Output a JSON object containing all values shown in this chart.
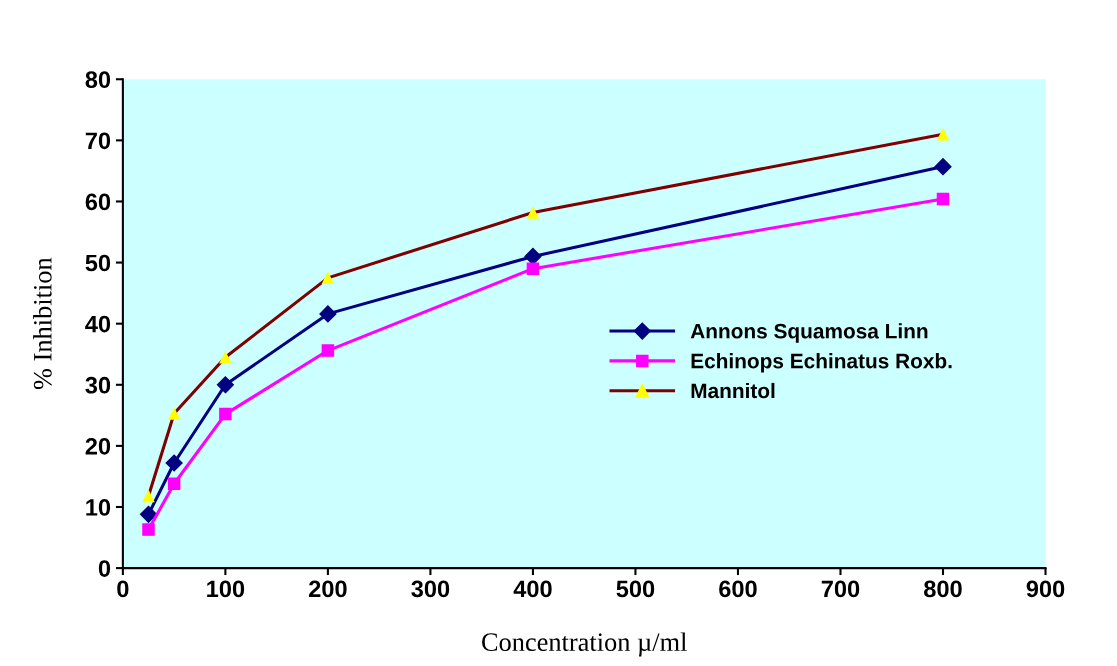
{
  "chart_data": {
    "type": "line",
    "xlabel": "Concentration µ/ml",
    "ylabel": "% Inhibition",
    "x": [
      25,
      50,
      100,
      200,
      400,
      800
    ],
    "series": [
      {
        "name": "Annons Squamosa Linn",
        "color": "#000080",
        "marker": "diamond",
        "values": [
          8.8,
          17.2,
          30,
          41.6,
          51,
          65.7
        ]
      },
      {
        "name": "Echinops Echinatus Roxb.",
        "color": "#ff00ff",
        "marker": "square",
        "values": [
          6.3,
          13.8,
          25.2,
          35.6,
          49,
          60.4
        ]
      },
      {
        "name": "Mannitol",
        "color": "#800000",
        "marker": "triangle",
        "colors": [
          "#ffff00",
          "#ffff00",
          "#ffff00",
          "#ffff00",
          "#ffff00",
          "#ffff00"
        ],
        "values": [
          11.8,
          25.3,
          34.5,
          47.5,
          58.2,
          71
        ]
      }
    ],
    "xlim": [
      0,
      900
    ],
    "xticks": [
      0,
      100,
      200,
      300,
      400,
      500,
      600,
      700,
      800,
      900
    ],
    "ylim": [
      0,
      80
    ],
    "yticks": [
      0,
      10,
      20,
      30,
      40,
      50,
      60,
      70,
      80
    ],
    "grid": false,
    "legend": "right",
    "line_style": "solid"
  }
}
